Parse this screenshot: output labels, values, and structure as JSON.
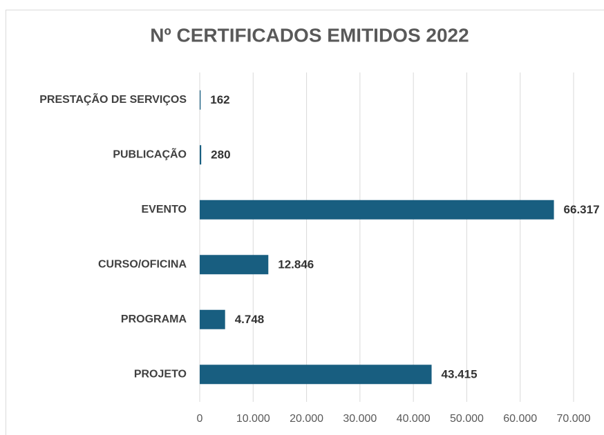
{
  "chart_data": {
    "type": "bar",
    "orientation": "horizontal",
    "title": "Nº CERTIFICADOS EMITIDOS 2022",
    "categories": [
      "PRESTAÇÃO DE SERVIÇOS",
      "PUBLICAÇÃO",
      "EVENTO",
      "CURSO/OFICINA",
      "PROGRAMA",
      "PROJETO"
    ],
    "values": [
      162,
      280,
      66317,
      12846,
      4748,
      43415
    ],
    "value_labels": [
      "162",
      "280",
      "66.317",
      "12.846",
      "4.748",
      "43.415"
    ],
    "color": "#185e80",
    "xlim": [
      0,
      70000
    ],
    "xticks": [
      0,
      {
        "value": 10000,
        "label": "10.000"
      },
      {
        "value": 20000,
        "label": "20.000"
      },
      {
        "value": 30000,
        "label": "30.000"
      },
      {
        "value": 40000,
        "label": "40.000"
      },
      {
        "value": 50000,
        "label": "50.000"
      },
      {
        "value": 60000,
        "label": "60.000"
      },
      {
        "value": 70000,
        "label": "70.000"
      }
    ],
    "grid": true
  }
}
